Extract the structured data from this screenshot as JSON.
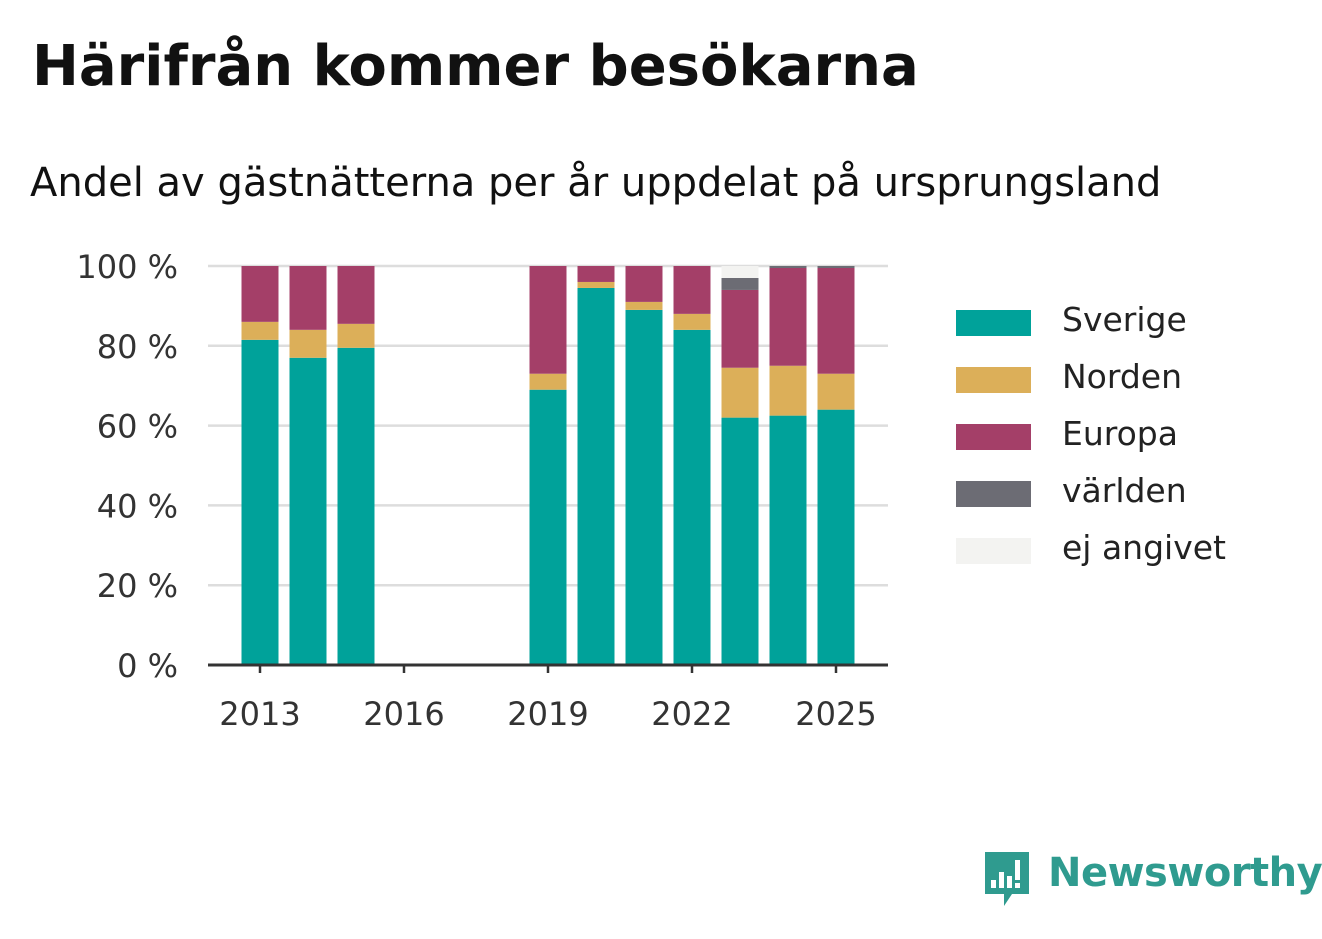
{
  "title": "Härifrån kommer besökarna",
  "subtitle": "Andel av gästnätterna per år uppdelat på ursprungsland",
  "brand": {
    "name": "Newsworthy",
    "icon": "bar-chart-logo-icon",
    "color": "#2f9b8f"
  },
  "chart_data": {
    "type": "bar",
    "stacked": true,
    "x": [
      2013,
      2014,
      2015,
      2016,
      2017,
      2018,
      2019,
      2020,
      2021,
      2022,
      2023,
      2024,
      2025
    ],
    "series": [
      {
        "name": "Sverige",
        "color": "#00a29a",
        "values": [
          81.5,
          77,
          79.5,
          null,
          null,
          null,
          69,
          94.5,
          89,
          84,
          62,
          62.5,
          64
        ]
      },
      {
        "name": "Norden",
        "color": "#dcaf59",
        "values": [
          4.5,
          7,
          6,
          null,
          null,
          null,
          4,
          1.5,
          2,
          4,
          12.5,
          12.5,
          9
        ]
      },
      {
        "name": "Europa",
        "color": "#a43f68",
        "values": [
          14,
          16,
          14.5,
          null,
          null,
          null,
          27,
          4,
          9,
          12,
          19.5,
          24.5,
          26.5
        ]
      },
      {
        "name": "världen",
        "color": "#6c6c74",
        "values": [
          0,
          0,
          0,
          null,
          null,
          null,
          0,
          0,
          0,
          0,
          3,
          0.5,
          0.5
        ]
      },
      {
        "name": "ej angivet",
        "color": "#f3f3f1",
        "values": [
          0,
          0,
          0,
          null,
          null,
          null,
          0,
          0,
          0,
          0,
          3,
          0,
          0
        ]
      }
    ],
    "ylim": [
      0,
      100
    ],
    "yticks": [
      0,
      20,
      40,
      60,
      80,
      100
    ],
    "ytick_labels": [
      "0 %",
      "20 %",
      "40 %",
      "60 %",
      "80 %",
      "100 %"
    ],
    "xticks": [
      2013,
      2016,
      2019,
      2022,
      2025
    ],
    "xtick_labels": [
      "2013",
      "2016",
      "2019",
      "2022",
      "2025"
    ],
    "grid": true,
    "legend_position": "right"
  }
}
